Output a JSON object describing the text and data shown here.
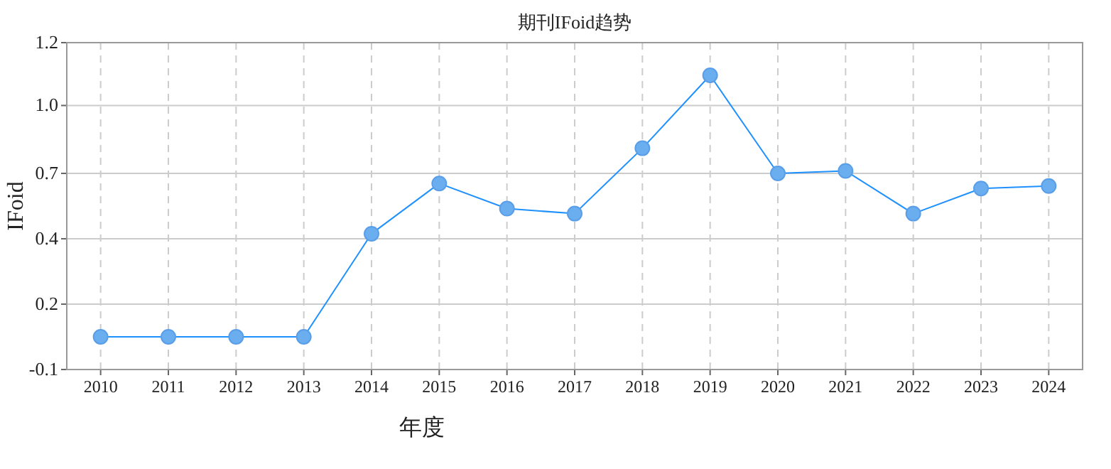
{
  "chart_data": {
    "type": "line",
    "title": "期刊IFoid趋势",
    "xlabel": "年度",
    "ylabel": "IFoid",
    "categories": [
      "2010",
      "2011",
      "2012",
      "2013",
      "2014",
      "2015",
      "2016",
      "2017",
      "2018",
      "2019",
      "2020",
      "2021",
      "2022",
      "2023",
      "2024"
    ],
    "series": [
      {
        "color": "#1e90ff",
        "values": [
          0.03,
          0.03,
          0.03,
          0.03,
          0.44,
          0.64,
          0.54,
          0.52,
          0.78,
          1.07,
          0.68,
          0.69,
          0.52,
          0.62,
          0.63
        ]
      }
    ],
    "ylim": [
      -0.1,
      1.2
    ],
    "yticks": [
      {
        "value": -0.1,
        "label": "-0.1"
      },
      {
        "value": 0.16,
        "label": "0.2"
      },
      {
        "value": 0.42,
        "label": "0.4"
      },
      {
        "value": 0.68,
        "label": "0.7"
      },
      {
        "value": 0.95,
        "label": "1.0"
      },
      {
        "value": 1.2,
        "label": "1.2"
      }
    ],
    "grid": true,
    "marker": "circle",
    "line_style": "solid"
  }
}
